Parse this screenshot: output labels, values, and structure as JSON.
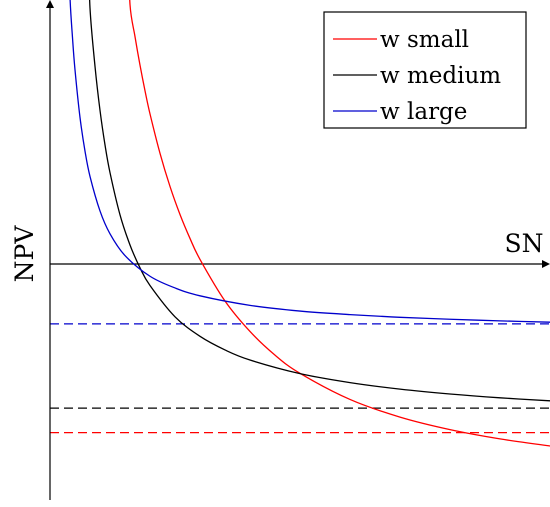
{
  "chart_data": {
    "type": "line",
    "title": "",
    "xlabel": "SN",
    "ylabel": "NPV",
    "grid": false,
    "legend_position": "top-right",
    "xlim": [
      0,
      1
    ],
    "ylim": [
      -0.9,
      1.0
    ],
    "series": [
      {
        "name": "w small",
        "color": "#ff0000",
        "asymptote": -0.62,
        "x": [
          0.16,
          0.17,
          0.18,
          0.19,
          0.2,
          0.22,
          0.24,
          0.26,
          0.28,
          0.3,
          0.35,
          0.4,
          0.45,
          0.5,
          0.6,
          0.7,
          0.8,
          0.9,
          1.0
        ],
        "y": [
          0.954,
          0.836,
          0.731,
          0.637,
          0.552,
          0.407,
          0.285,
          0.182,
          0.094,
          0.017,
          -0.136,
          -0.248,
          -0.335,
          -0.402,
          -0.498,
          -0.563,
          -0.609,
          -0.643,
          -0.669
        ]
      },
      {
        "name": "w medium",
        "color": "#000000",
        "asymptote": -0.53,
        "x": [
          0.08,
          0.09,
          0.1,
          0.11,
          0.12,
          0.14,
          0.16,
          0.18,
          0.2,
          0.25,
          0.3,
          0.35,
          0.4,
          0.5,
          0.6,
          0.7,
          0.8,
          0.9,
          1.0
        ],
        "y": [
          0.941,
          0.727,
          0.565,
          0.438,
          0.336,
          0.181,
          0.07,
          -0.014,
          -0.079,
          -0.194,
          -0.266,
          -0.316,
          -0.353,
          -0.403,
          -0.436,
          -0.46,
          -0.478,
          -0.492,
          -0.503
        ]
      },
      {
        "name": "w large",
        "color": "#0000cc",
        "asymptote": -0.22,
        "x": [
          0.04,
          0.045,
          0.05,
          0.06,
          0.07,
          0.08,
          0.1,
          0.12,
          0.15,
          0.2,
          0.25,
          0.3,
          0.4,
          0.5,
          0.6,
          0.7,
          0.8,
          0.9,
          1.0
        ],
        "y": [
          0.981,
          0.832,
          0.714,
          0.539,
          0.415,
          0.322,
          0.195,
          0.111,
          0.031,
          -0.045,
          -0.088,
          -0.117,
          -0.152,
          -0.173,
          -0.186,
          -0.196,
          -0.203,
          -0.209,
          -0.214
        ]
      }
    ]
  }
}
